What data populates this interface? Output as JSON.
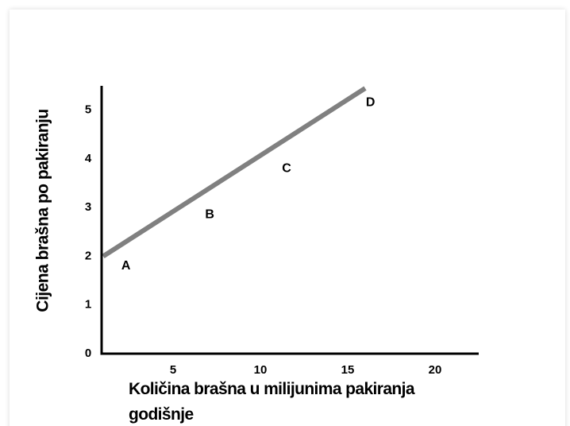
{
  "chart_data": {
    "type": "line",
    "xlabel": "Količina brašna u milijunima pakiranja godišnje",
    "ylabel": "Cijena brašna po pakiranju",
    "x": [
      1,
      16
    ],
    "series": [
      {
        "color": "#808080",
        "values": [
          2,
          5.45
        ]
      }
    ],
    "xlim": [
      1,
      22.5
    ],
    "xticks": [
      5,
      10,
      15,
      20
    ],
    "ylim": [
      0,
      5.5
    ],
    "yticks": [
      0,
      1,
      2,
      3,
      4,
      5
    ],
    "annotations": [
      {
        "text": "A",
        "x": 2.3,
        "y": 1.8
      },
      {
        "text": "B",
        "x": 7.1,
        "y": 2.85
      },
      {
        "text": "C",
        "x": 11.5,
        "y": 3.8
      },
      {
        "text": "D",
        "x": 16.3,
        "y": 5.15
      }
    ]
  }
}
